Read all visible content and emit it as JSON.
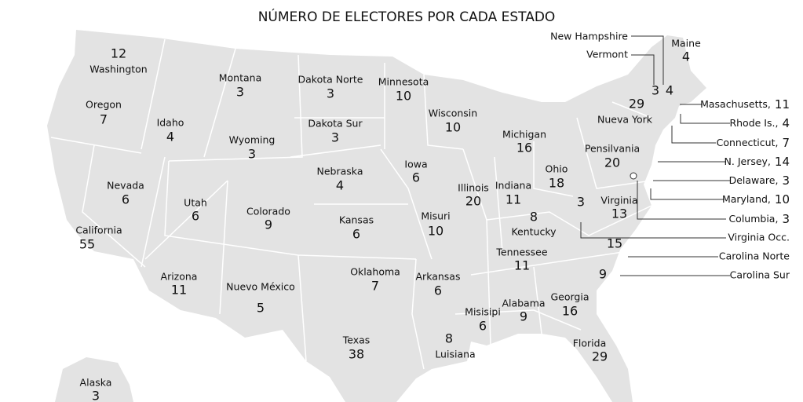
{
  "title": "NÚMERO DE ELECTORES POR CADA ESTADO",
  "states": [
    {
      "name": "Washington",
      "votes": 12
    },
    {
      "name": "Oregon",
      "votes": 7
    },
    {
      "name": "California",
      "votes": 55
    },
    {
      "name": "Nevada",
      "votes": 6
    },
    {
      "name": "Idaho",
      "votes": 4
    },
    {
      "name": "Montana",
      "votes": 3
    },
    {
      "name": "Wyoming",
      "votes": 3
    },
    {
      "name": "Utah",
      "votes": 6
    },
    {
      "name": "Arizona",
      "votes": 11
    },
    {
      "name": "Colorado",
      "votes": 9
    },
    {
      "name": "Nuevo México",
      "votes": 5
    },
    {
      "name": "Dakota Norte",
      "votes": 3
    },
    {
      "name": "Dakota Sur",
      "votes": 3
    },
    {
      "name": "Nebraska",
      "votes": 4
    },
    {
      "name": "Kansas",
      "votes": 6
    },
    {
      "name": "Oklahoma",
      "votes": 7
    },
    {
      "name": "Texas",
      "votes": 38
    },
    {
      "name": "Minnesota",
      "votes": 10
    },
    {
      "name": "Iowa",
      "votes": 6
    },
    {
      "name": "Misuri",
      "votes": 10
    },
    {
      "name": "Arkansas",
      "votes": 6
    },
    {
      "name": "Luisiana",
      "votes": 8
    },
    {
      "name": "Wisconsin",
      "votes": 10
    },
    {
      "name": "Illinois",
      "votes": 20
    },
    {
      "name": "Michigan",
      "votes": 16
    },
    {
      "name": "Indiana",
      "votes": 11
    },
    {
      "name": "Ohio",
      "votes": 18
    },
    {
      "name": "Kentucky",
      "votes": 8
    },
    {
      "name": "Tennessee",
      "votes": 11
    },
    {
      "name": "Misisipi",
      "votes": 6
    },
    {
      "name": "Alabama",
      "votes": 9
    },
    {
      "name": "Georgia",
      "votes": 16
    },
    {
      "name": "Florida",
      "votes": 29
    },
    {
      "name": "Pensilvania",
      "votes": 20
    },
    {
      "name": "Nueva York",
      "votes": 29
    },
    {
      "name": "Virginia",
      "votes": 13
    },
    {
      "name": "Alaska",
      "votes": 3
    },
    {
      "name": "Maine",
      "votes": 4
    },
    {
      "name": "New Hampshire",
      "votes": 4
    },
    {
      "name": "Vermont",
      "votes": 3
    },
    {
      "name": "Virginia Occ.",
      "votes": 3
    },
    {
      "name": "Carolina Norte",
      "votes": 15
    },
    {
      "name": "Carolina Sur",
      "votes": 9
    },
    {
      "name": "Masachusetts,",
      "votes": 11
    },
    {
      "name": "Rhode Is.,",
      "votes": 4
    },
    {
      "name": "Connecticut,",
      "votes": 7
    },
    {
      "name": "N. Jersey,",
      "votes": 14
    },
    {
      "name": "Delaware,",
      "votes": 3
    },
    {
      "name": "Maryland,",
      "votes": 10
    },
    {
      "name": "Columbia,",
      "votes": 3
    }
  ]
}
